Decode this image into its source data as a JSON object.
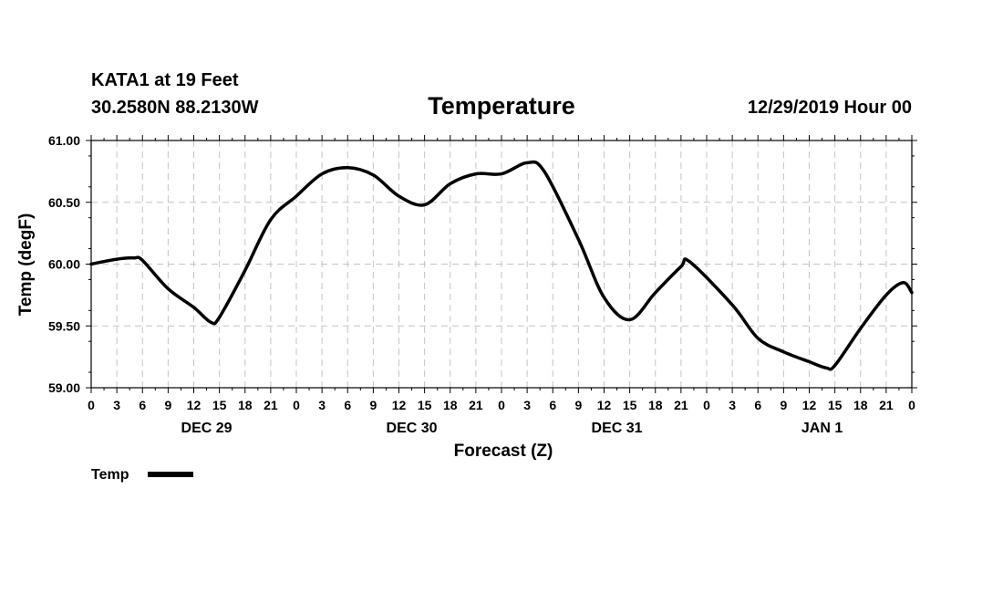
{
  "header": {
    "station": "KATA1 at 19 Feet",
    "coords": "30.2580N 88.2130W",
    "title": "Temperature",
    "datetime": "12/29/2019 Hour 00"
  },
  "chart_data": {
    "type": "line",
    "xlabel": "Forecast (Z)",
    "ylabel": "Temp (degF)",
    "ylim": [
      59.0,
      61.0
    ],
    "yticks": [
      "59.00",
      "59.50",
      "60.00",
      "60.50",
      "61.00"
    ],
    "xticks": [
      "0",
      "3",
      "6",
      "9",
      "12",
      "15",
      "18",
      "21",
      "0",
      "3",
      "6",
      "9",
      "12",
      "15",
      "18",
      "21",
      "0",
      "3",
      "6",
      "9",
      "12",
      "15",
      "18",
      "21",
      "0",
      "3",
      "6",
      "9",
      "12",
      "15",
      "18",
      "21",
      "0"
    ],
    "days": [
      "DEC 29",
      "DEC 30",
      "DEC 31",
      "JAN 1"
    ],
    "grid": true,
    "legend_position": "bottom-left",
    "series": [
      {
        "name": "Temp",
        "color": "#000000",
        "x": [
          "2019-12-29 00Z",
          "2019-12-29 03Z",
          "2019-12-29 05Z",
          "2019-12-29 06Z",
          "2019-12-29 09Z",
          "2019-12-29 12Z",
          "2019-12-29 14Z",
          "2019-12-29 15Z",
          "2019-12-29 18Z",
          "2019-12-29 21Z",
          "2019-12-30 00Z",
          "2019-12-30 03Z",
          "2019-12-30 06Z",
          "2019-12-30 09Z",
          "2019-12-30 12Z",
          "2019-12-30 15Z",
          "2019-12-30 18Z",
          "2019-12-30 21Z",
          "2019-12-31 00Z",
          "2019-12-31 03Z",
          "2019-12-31 05Z",
          "2019-12-31 09Z",
          "2019-12-31 12Z",
          "2019-12-31 15Z",
          "2019-12-31 18Z",
          "2019-12-31 21Z",
          "2019-12-31 22Z",
          "2020-01-01 03Z",
          "2020-01-01 06Z",
          "2020-01-01 09Z",
          "2020-01-01 12Z",
          "2020-01-01 14Z",
          "2020-01-01 15Z",
          "2020-01-01 18Z",
          "2020-01-01 21Z",
          "2020-01-01 23Z",
          "2020-01-02 00Z"
        ],
        "values": [
          60.0,
          60.04,
          60.05,
          60.03,
          59.8,
          59.65,
          59.53,
          59.57,
          59.95,
          60.36,
          60.55,
          60.73,
          60.78,
          60.72,
          60.55,
          60.48,
          60.65,
          60.73,
          60.73,
          60.82,
          60.75,
          60.2,
          59.73,
          59.55,
          59.77,
          59.98,
          60.02,
          59.67,
          59.4,
          59.29,
          59.21,
          59.16,
          59.18,
          59.48,
          59.75,
          59.85,
          59.77
        ]
      }
    ]
  }
}
